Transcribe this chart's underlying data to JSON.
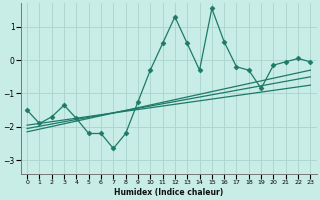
{
  "xlabel": "Humidex (Indice chaleur)",
  "xlim": [
    -0.5,
    23.5
  ],
  "ylim": [
    -3.4,
    1.7
  ],
  "xticks": [
    0,
    1,
    2,
    3,
    4,
    5,
    6,
    7,
    8,
    9,
    10,
    11,
    12,
    13,
    14,
    15,
    16,
    17,
    18,
    19,
    20,
    21,
    22,
    23
  ],
  "yticks": [
    -3,
    -2,
    -1,
    0,
    1
  ],
  "bg_color": "#c8ece6",
  "grid_color": "#aad4cc",
  "line_color": "#1e7a68",
  "main_x": [
    0,
    1,
    2,
    3,
    4,
    5,
    6,
    7,
    8,
    9,
    10,
    11,
    12,
    13,
    14,
    15,
    16,
    17,
    18,
    19,
    20,
    21,
    22,
    23
  ],
  "main_y": [
    -1.5,
    -1.9,
    -1.7,
    -1.35,
    -1.75,
    -2.2,
    -2.2,
    -2.65,
    -2.2,
    -1.25,
    -0.3,
    0.5,
    1.3,
    0.5,
    -0.3,
    1.55,
    0.55,
    -0.2,
    -0.3,
    -0.85,
    -0.15,
    -0.05,
    0.05,
    -0.05
  ],
  "trend1_x": [
    0,
    23
  ],
  "trend1_y": [
    -1.95,
    -0.75
  ],
  "trend2_x": [
    0,
    23
  ],
  "trend2_y": [
    -2.05,
    -0.5
  ],
  "trend3_x": [
    0,
    23
  ],
  "trend3_y": [
    -2.15,
    -0.3
  ]
}
